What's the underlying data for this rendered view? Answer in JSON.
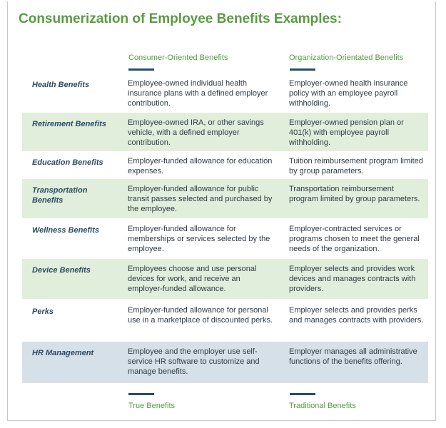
{
  "title": "Consumerization of Employee Benefits Examples:",
  "columns": {
    "consumer": "Consumer-Oriented Benefits",
    "organization": "Organization-Orientated Benefits"
  },
  "rows": [
    {
      "category": "Health Benefits",
      "consumer": "Employee-owned individual health insurance plans with a defined employer contribution.",
      "organization": "Employer-owned health insurance policy with an employee payroll withholding.",
      "shade": "none"
    },
    {
      "category": "Retirement Benefits",
      "consumer": "Employee-owned IRA, or other savings vehicle, with a defined employer contribution.",
      "organization": "Employer-owned pension plan or 401(k) with employee payroll withholding.",
      "shade": "green"
    },
    {
      "category": "Education Benefits",
      "consumer": "Employer-funded allowance for education expenses.",
      "organization": "Tuition reimbursement program limited by group parameters.",
      "shade": "none"
    },
    {
      "category": "Transportation Benefits",
      "consumer": "Employer-funded allowance for public transit passes selected and purchased by the employee.",
      "organization": "Transportation reimbursement program limited by group parameters.",
      "shade": "green"
    },
    {
      "category": "Wellness Benefits",
      "consumer": "Employer-funded allowance for memberships or services selected by the employee.",
      "organization": "Employer-contracted services or programs chosen to meet the general needs of the organization.",
      "shade": "none"
    },
    {
      "category": "Device Benefits",
      "consumer": "Employees choose and use personal devices for work, and receive an employer-funded allowance.",
      "organization": "Employer selects and provides work devices and manages contracts with providers.",
      "shade": "green"
    },
    {
      "category": "Perks",
      "consumer": "Employer-funded allowance for personal use in a marketplace of discounted perks.",
      "organization": "Employer selects and provides perks and manages contracts with providers.",
      "shade": "none"
    },
    {
      "category": "HR Management",
      "consumer": "Employee and the employer use self-service HR software to customize and manage benefits.",
      "organization": "Employer manages all administrative functions of the benefits offering.",
      "shade": "blue"
    }
  ],
  "footer": {
    "consumer": "True Benefits",
    "organization": "Traditional Benefits"
  },
  "colors": {
    "title_green": "#5a9a45",
    "navy": "#2b4a66",
    "row_green": "#e1eedb",
    "row_blue": "#d6e0e8"
  }
}
